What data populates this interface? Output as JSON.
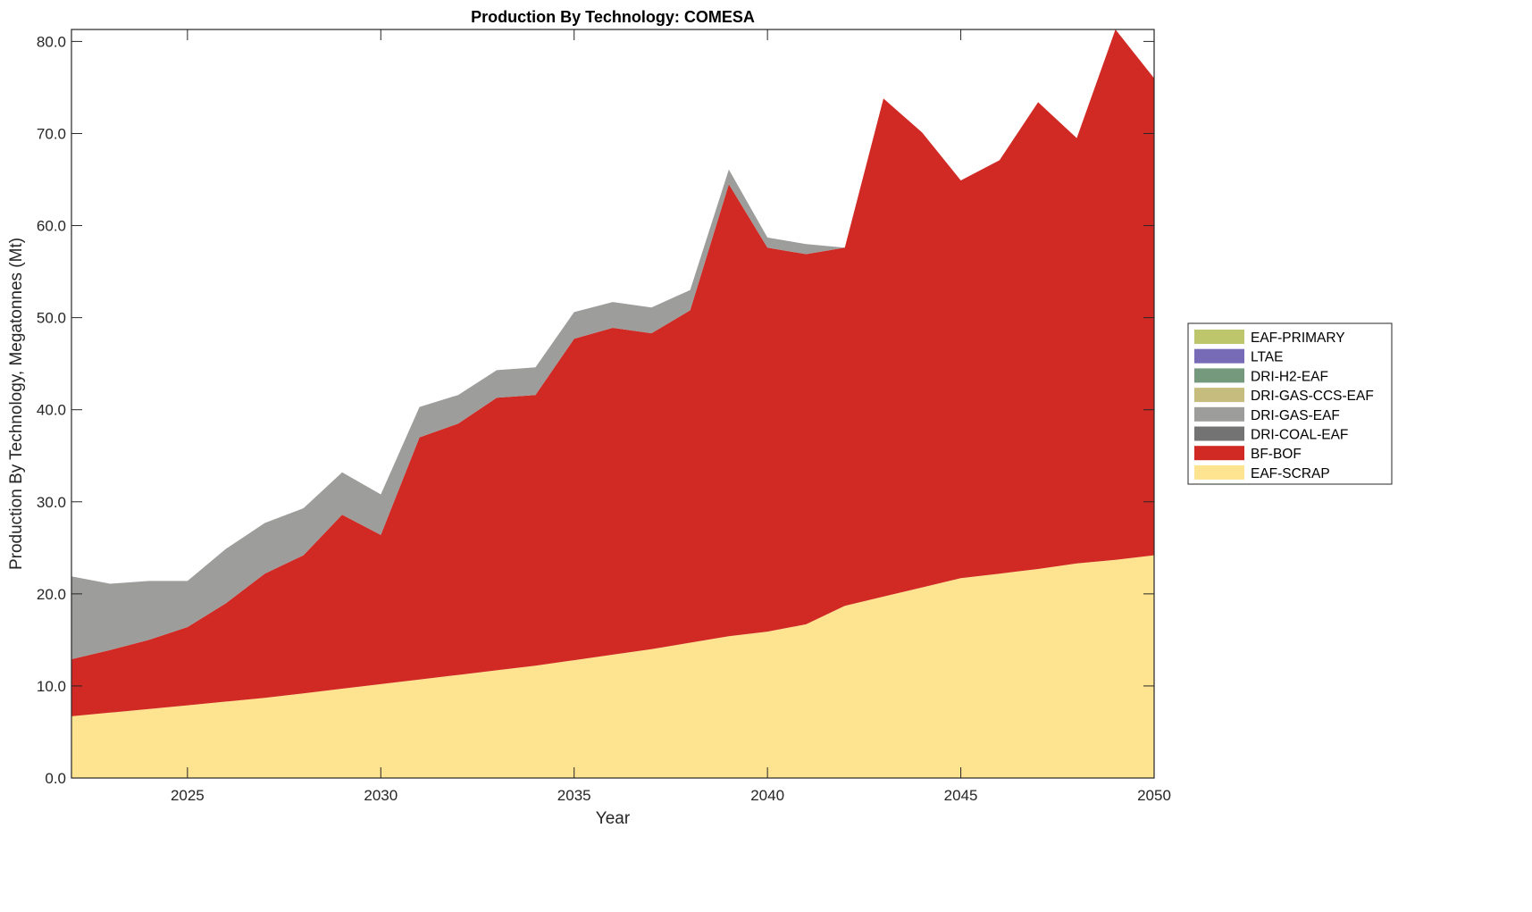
{
  "chart_data": {
    "type": "area",
    "stacked": true,
    "title": "Production By Technology: COMESA",
    "xlabel": "Year",
    "ylabel": "Production By Technology, Megatonnes (Mt)",
    "xlim": [
      2022,
      2050
    ],
    "ylim": [
      0,
      81.3
    ],
    "xticks": [
      2025,
      2030,
      2035,
      2040,
      2045,
      2050
    ],
    "xtick_labels": [
      "2025",
      "2030",
      "2035",
      "2040",
      "2045",
      "2050"
    ],
    "yticks": [
      0,
      10,
      20,
      30,
      40,
      50,
      60,
      70,
      80
    ],
    "ytick_labels": [
      "0.0",
      "10.0",
      "20.0",
      "30.0",
      "40.0",
      "50.0",
      "60.0",
      "70.0",
      "80.0"
    ],
    "grid": false,
    "legend_position": "right",
    "x": [
      2022,
      2023,
      2024,
      2025,
      2026,
      2027,
      2028,
      2029,
      2030,
      2031,
      2032,
      2033,
      2034,
      2035,
      2036,
      2037,
      2038,
      2039,
      2040,
      2041,
      2042,
      2043,
      2044,
      2045,
      2046,
      2047,
      2048,
      2049,
      2050
    ],
    "series": [
      {
        "name": "EAF-SCRAP",
        "color": "#fee391",
        "values": [
          6.7,
          7.1,
          7.5,
          7.9,
          8.3,
          8.7,
          9.2,
          9.7,
          10.2,
          10.7,
          11.2,
          11.7,
          12.2,
          12.8,
          13.4,
          14.0,
          14.7,
          15.4,
          15.9,
          16.7,
          18.7,
          19.7,
          20.7,
          21.7,
          22.2,
          22.7,
          23.3,
          23.7,
          24.2
        ]
      },
      {
        "name": "BF-BOF",
        "color": "#d12a24",
        "values": [
          6.2,
          6.8,
          7.5,
          8.5,
          10.7,
          13.5,
          15.0,
          18.9,
          16.2,
          26.3,
          27.3,
          29.6,
          29.4,
          34.9,
          35.5,
          34.3,
          36.1,
          49.1,
          41.7,
          40.2,
          38.9,
          54.1,
          49.4,
          43.2,
          44.9,
          50.7,
          46.2,
          57.6,
          51.8
        ]
      },
      {
        "name": "DRI-COAL-EAF",
        "color": "#737373",
        "values": [
          0,
          0,
          0,
          0,
          0,
          0,
          0,
          0,
          0,
          0,
          0,
          0,
          0,
          0,
          0,
          0,
          0,
          0,
          0,
          0,
          0,
          0,
          0,
          0,
          0,
          0,
          0,
          0,
          0
        ]
      },
      {
        "name": "DRI-GAS-EAF",
        "color": "#9d9d9b",
        "values": [
          9.0,
          7.2,
          6.4,
          5.0,
          5.9,
          5.5,
          5.1,
          4.6,
          4.4,
          3.3,
          3.1,
          3.0,
          3.0,
          2.9,
          2.8,
          2.8,
          2.2,
          1.6,
          1.1,
          1.1,
          0,
          0,
          0,
          0,
          0,
          0,
          0,
          0,
          0
        ]
      },
      {
        "name": "DRI-GAS-CCS-EAF",
        "color": "#c6bc7e",
        "values": [
          0,
          0,
          0,
          0,
          0,
          0,
          0,
          0,
          0,
          0,
          0,
          0,
          0,
          0,
          0,
          0,
          0,
          0,
          0,
          0,
          0,
          0,
          0,
          0,
          0,
          0,
          0,
          0,
          0
        ]
      },
      {
        "name": "DRI-H2-EAF",
        "color": "#74997c",
        "values": [
          0,
          0,
          0,
          0,
          0,
          0,
          0,
          0,
          0,
          0,
          0,
          0,
          0,
          0,
          0,
          0,
          0,
          0,
          0,
          0,
          0,
          0,
          0,
          0,
          0,
          0,
          0,
          0,
          0
        ]
      },
      {
        "name": "LTAE",
        "color": "#776bb8",
        "values": [
          0,
          0,
          0,
          0,
          0,
          0,
          0,
          0,
          0,
          0,
          0,
          0,
          0,
          0,
          0,
          0,
          0,
          0,
          0,
          0,
          0,
          0,
          0,
          0,
          0,
          0,
          0,
          0,
          0
        ]
      },
      {
        "name": "EAF-PRIMARY",
        "color": "#bec66b",
        "values": [
          0,
          0,
          0,
          0,
          0,
          0,
          0,
          0,
          0,
          0,
          0,
          0,
          0,
          0,
          0,
          0,
          0,
          0,
          0,
          0,
          0,
          0,
          0,
          0,
          0,
          0,
          0,
          0,
          0
        ]
      }
    ],
    "legend_order": [
      "EAF-PRIMARY",
      "LTAE",
      "DRI-H2-EAF",
      "DRI-GAS-CCS-EAF",
      "DRI-GAS-EAF",
      "DRI-COAL-EAF",
      "BF-BOF",
      "EAF-SCRAP"
    ]
  }
}
